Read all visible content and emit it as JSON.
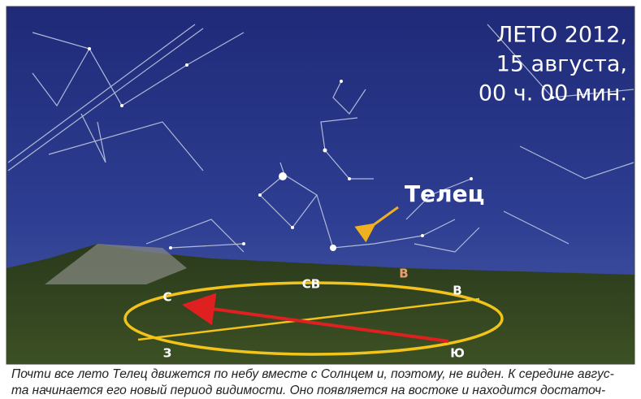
{
  "caption": {
    "title": [
      "ЛЕТО 2012,",
      "15 августа,",
      "00 ч. 00 мин."
    ]
  },
  "labels": {
    "constellation": "Телец",
    "horizon": {
      "ne": "СВ",
      "e_sun": "В",
      "n": "С",
      "e": "В",
      "w": "З",
      "s": "Ю"
    }
  },
  "text": [
    "Почти все лето Телец движется по небу вместе с Солнцем и, поэтому, не виден. К середине авгус-",
    "та начинается его новый период видимости. Оно появляется на востоке и находится достаточ-"
  ]
}
